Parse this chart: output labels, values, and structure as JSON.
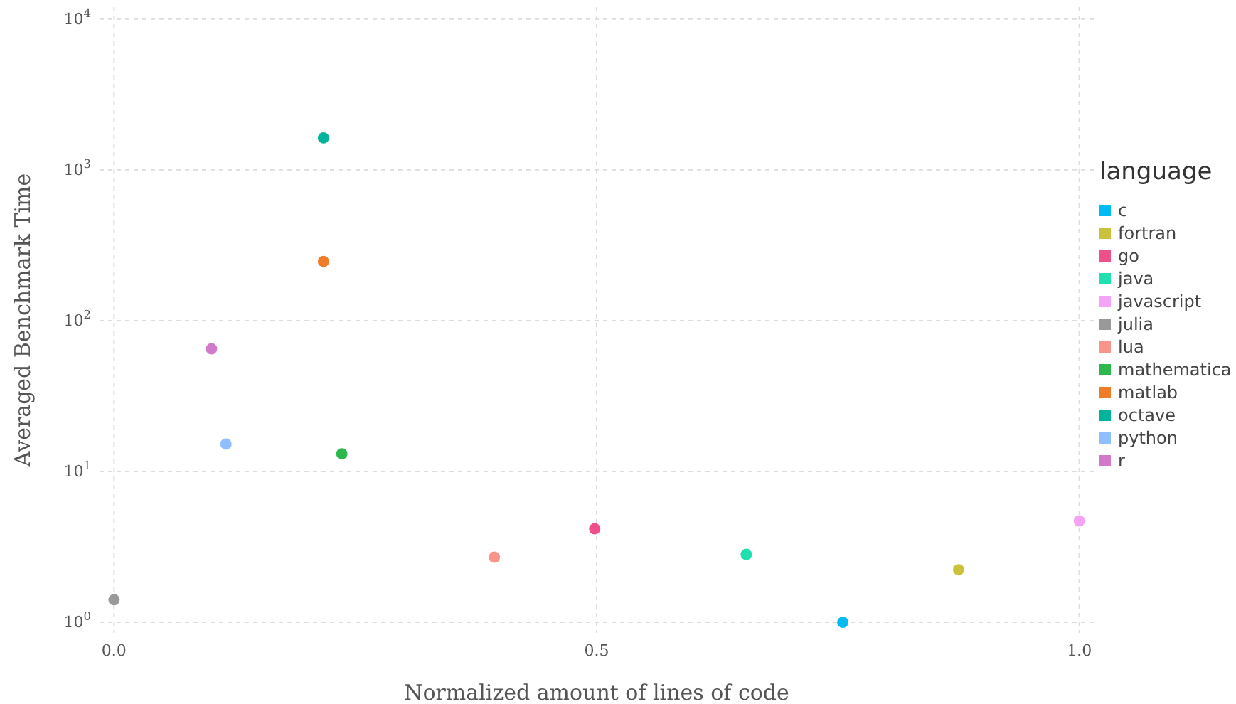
{
  "chart_data": {
    "type": "scatter",
    "xlabel": "Normalized amount of lines of code",
    "ylabel": "Averaged Benchmark Time",
    "legend_title": "language",
    "legend": "right",
    "grid": true,
    "marker": "circle",
    "log": "y",
    "xlim": [
      -0.015,
      1.015
    ],
    "xticks": [
      {
        "value": 0,
        "label": "0.0"
      },
      {
        "value": 0.5,
        "label": "0.5"
      },
      {
        "value": 1,
        "label": "1.0"
      }
    ],
    "ylim": [
      0.85,
      12000
    ],
    "yticks": [
      {
        "value": 1,
        "label": "10$^{0}$"
      },
      {
        "value": 10,
        "label": "10$^{1}$"
      },
      {
        "value": 100,
        "label": "10$^{2}$"
      },
      {
        "value": 1000,
        "label": "10$^{3}$"
      },
      {
        "value": 10000,
        "label": "10$^{4}$"
      }
    ],
    "series": [
      {
        "name": "c",
        "color": "#00bcf2",
        "x": [
          0.755
        ],
        "values": [
          1.0
        ]
      },
      {
        "name": "fortran",
        "color": "#c9c23a",
        "x": [
          0.875
        ],
        "values": [
          2.23
        ]
      },
      {
        "name": "go",
        "color": "#ef4f8a",
        "x": [
          0.498
        ],
        "values": [
          4.17
        ]
      },
      {
        "name": "java",
        "color": "#21e0b0",
        "x": [
          0.655
        ],
        "values": [
          2.82
        ]
      },
      {
        "name": "javascript",
        "color": "#f5a3f5",
        "x": [
          1.0
        ],
        "values": [
          4.7
        ]
      },
      {
        "name": "julia",
        "color": "#999999",
        "x": [
          0.0
        ],
        "values": [
          1.41
        ]
      },
      {
        "name": "lua",
        "color": "#f7958a",
        "x": [
          0.394
        ],
        "values": [
          2.7
        ]
      },
      {
        "name": "mathematica",
        "color": "#2db84d",
        "x": [
          0.236
        ],
        "values": [
          13.1
        ]
      },
      {
        "name": "matlab",
        "color": "#f07c28",
        "x": [
          0.217
        ],
        "values": [
          247
        ]
      },
      {
        "name": "octave",
        "color": "#00b39b",
        "x": [
          0.217
        ],
        "values": [
          1630
        ]
      },
      {
        "name": "python",
        "color": "#8fbfff",
        "x": [
          0.116
        ],
        "values": [
          15.2
        ]
      },
      {
        "name": "r",
        "color": "#d17ac9",
        "x": [
          0.101
        ],
        "values": [
          65
        ]
      }
    ]
  }
}
